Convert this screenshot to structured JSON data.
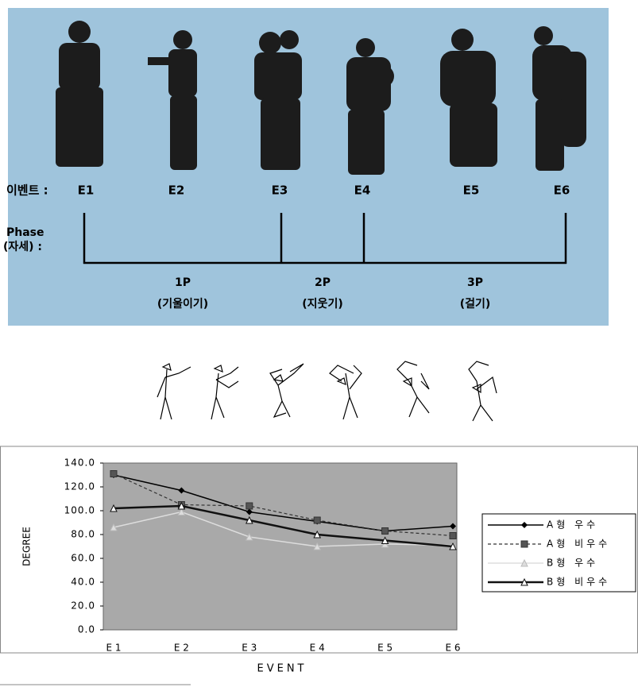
{
  "figure": {
    "event_label": "이벤트 :",
    "events": [
      "E1",
      "E2",
      "E3",
      "E4",
      "E5",
      "E6"
    ],
    "phase_label": [
      "Phase",
      "(자세) :"
    ],
    "phases": [
      {
        "name": "1P",
        "label": "(기울이기)"
      },
      {
        "name": "2P",
        "label": "(지웃기)"
      },
      {
        "name": "3P",
        "label": "(걸기)"
      }
    ]
  },
  "chart_data": {
    "type": "line",
    "categories": [
      "E 1",
      "E 2",
      "E 3",
      "E 4",
      "E 5",
      "E 6"
    ],
    "y_label": "DEGREE",
    "x_label": "EVENT",
    "ylim": [
      0,
      140
    ],
    "yticks": [
      {
        "value": 0,
        "label": "0.0"
      },
      {
        "value": 20,
        "label": "20.0"
      },
      {
        "value": 40,
        "label": "40.0"
      },
      {
        "value": 60,
        "label": "60.0"
      },
      {
        "value": 80,
        "label": "80.0"
      },
      {
        "value": 100,
        "label": "100.0"
      },
      {
        "value": 120,
        "label": "120.0"
      },
      {
        "value": 140,
        "label": "140.0"
      }
    ],
    "series": [
      {
        "name": "A형 우수",
        "color": "#000000",
        "marker": "diamond",
        "dash": "none",
        "width": 1.5,
        "values": [
          130,
          117,
          99,
          91,
          83,
          87
        ]
      },
      {
        "name": "A형 비우수",
        "color": "#333333",
        "marker": "square",
        "dash": "4 3",
        "width": 1.2,
        "values": [
          131,
          105,
          104,
          92,
          83,
          79
        ]
      },
      {
        "name": "B형 우수",
        "color": "#dddddd",
        "marker": "triangle",
        "dash": "none",
        "width": 1.5,
        "values": [
          86,
          99,
          78,
          70,
          72,
          71
        ]
      },
      {
        "name": "B형 비우수",
        "color": "#111111",
        "marker": "triangle-open",
        "dash": "none",
        "width": 2.5,
        "values": [
          102,
          104,
          92,
          80,
          75,
          70
        ]
      }
    ]
  }
}
